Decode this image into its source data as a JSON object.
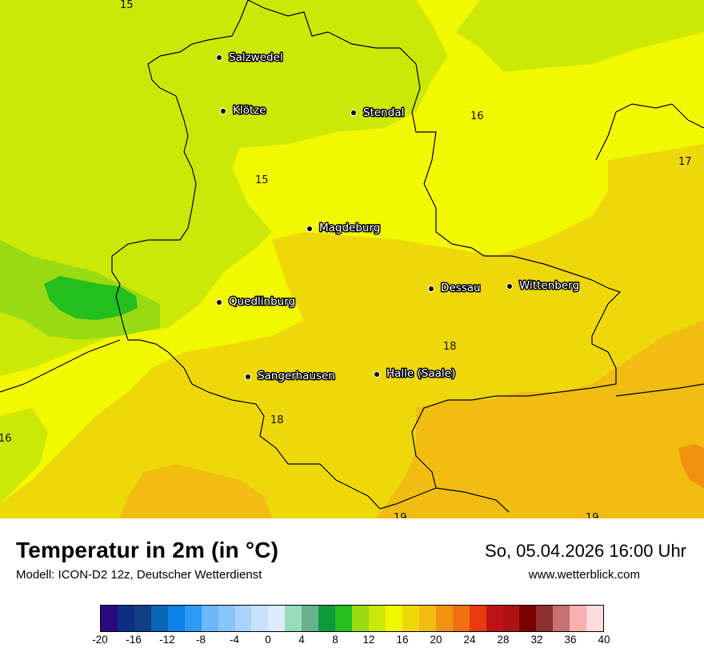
{
  "map": {
    "cities": [
      {
        "name": "Salzwedel"
      },
      {
        "name": "Klötze"
      },
      {
        "name": "Stendal"
      },
      {
        "name": "Magdeburg"
      },
      {
        "name": "Dessau"
      },
      {
        "name": "Wittenberg"
      },
      {
        "name": "Quedlinburg"
      },
      {
        "name": "Sangerhausen"
      },
      {
        "name": "Halle (Saale)"
      }
    ],
    "isolines": [
      "15",
      "16",
      "17",
      "15",
      "18",
      "18",
      "16",
      "19",
      "19"
    ]
  },
  "legend": {
    "title": "Temperatur in 2m (in °C)",
    "model": "Modell: ICON-D2 12z, Deutscher Wetterdienst",
    "datetime": "So, 05.04.2026 16:00 Uhr",
    "website": "www.wetterblick.com",
    "scale_colors": [
      "#2a0a80",
      "#0d2f80",
      "#123f84",
      "#0a64b8",
      "#0a82e8",
      "#2e9af5",
      "#6ab8f8",
      "#88c6fa",
      "#a8d4fb",
      "#c6e2fc",
      "#dcecfd",
      "#94dcbc",
      "#68b08e",
      "#0e9a3a",
      "#22bf1e",
      "#9ada10",
      "#cce806",
      "#f2f800",
      "#eed80a",
      "#f0bd10",
      "#f09210",
      "#f07010",
      "#e83a0c",
      "#bc1414",
      "#ac1414",
      "#7a0000",
      "#8c3030",
      "#c87070",
      "#f8b0b0",
      "#fcdcdc"
    ],
    "ticks": [
      "-20",
      "-16",
      "-12",
      "-8",
      "-4",
      "0",
      "4",
      "8",
      "12",
      "16",
      "20",
      "24",
      "28",
      "32",
      "36",
      "40"
    ]
  }
}
